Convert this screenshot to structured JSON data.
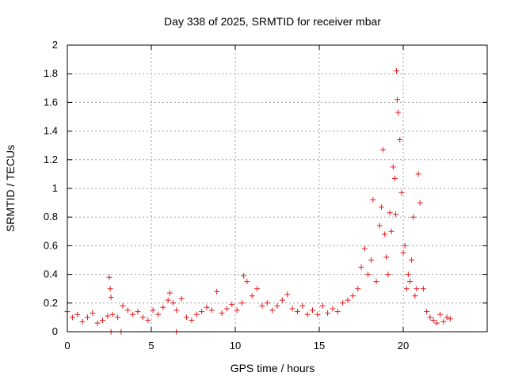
{
  "chart_data": {
    "type": "scatter",
    "title": "Day 338 of 2025, SRMTID for receiver mbar",
    "xlabel": "GPS time / hours",
    "ylabel": "SRMTID / TECUs",
    "xlim": [
      0,
      25
    ],
    "ylim": [
      0,
      2
    ],
    "grid": true,
    "xticks": [
      0,
      5,
      10,
      15,
      20
    ],
    "yticks": [
      0,
      0.2,
      0.4,
      0.6,
      0.8,
      1,
      1.2,
      1.4,
      1.6,
      1.8,
      2
    ],
    "marker": "+",
    "colors": {
      "series": "#e41a1c",
      "grid": "#a0a0a0",
      "axis": "#000000"
    },
    "series": [
      {
        "name": "SRMTID",
        "x": [
          0,
          0.3,
          0.6,
          0.9,
          1.2,
          1.5,
          1.8,
          2.1,
          2.4,
          2.5,
          2.55,
          2.6,
          2.7,
          3.0,
          3.3,
          3.6,
          3.9,
          4.2,
          4.5,
          4.8,
          5.1,
          5.4,
          5.7,
          6.0,
          6.1,
          6.3,
          6.5,
          6.8,
          7.1,
          7.4,
          7.7,
          8.0,
          8.3,
          8.6,
          8.9,
          9.2,
          9.5,
          9.8,
          10.1,
          10.4,
          10.5,
          10.7,
          11.0,
          11.3,
          11.6,
          11.9,
          12.2,
          12.5,
          12.8,
          13.1,
          13.4,
          13.7,
          14.0,
          14.3,
          14.6,
          14.9,
          15.2,
          15.5,
          15.8,
          16.1,
          16.4,
          16.7,
          17.0,
          17.3,
          17.5,
          17.7,
          17.9,
          18.1,
          18.2,
          18.4,
          18.6,
          18.7,
          18.8,
          18.9,
          19.0,
          19.1,
          19.2,
          19.3,
          19.4,
          19.5,
          19.55,
          19.6,
          19.65,
          19.7,
          19.8,
          19.9,
          20.0,
          20.1,
          20.2,
          20.3,
          20.4,
          20.5,
          20.6,
          20.7,
          20.8,
          20.9,
          21.0,
          21.2,
          21.4,
          21.6,
          21.8,
          22.0,
          22.2,
          22.4,
          22.6,
          22.8,
          2.6,
          3.2,
          6.5
        ],
        "y": [
          0.14,
          0.1,
          0.12,
          0.07,
          0.1,
          0.13,
          0.06,
          0.08,
          0.11,
          0.38,
          0.3,
          0.24,
          0.12,
          0.1,
          0.18,
          0.15,
          0.12,
          0.14,
          0.1,
          0.08,
          0.15,
          0.12,
          0.17,
          0.22,
          0.27,
          0.2,
          0.15,
          0.23,
          0.1,
          0.08,
          0.12,
          0.14,
          0.17,
          0.15,
          0.28,
          0.13,
          0.16,
          0.19,
          0.15,
          0.2,
          0.39,
          0.35,
          0.25,
          0.3,
          0.18,
          0.2,
          0.15,
          0.18,
          0.22,
          0.26,
          0.16,
          0.14,
          0.18,
          0.12,
          0.15,
          0.12,
          0.18,
          0.13,
          0.16,
          0.14,
          0.2,
          0.22,
          0.25,
          0.3,
          0.45,
          0.58,
          0.4,
          0.5,
          0.92,
          0.35,
          0.74,
          0.87,
          1.27,
          0.68,
          0.52,
          0.4,
          0.83,
          0.7,
          1.15,
          1.07,
          0.82,
          1.82,
          1.62,
          1.53,
          1.34,
          0.97,
          0.55,
          0.6,
          0.3,
          0.4,
          0.35,
          0.5,
          0.8,
          0.25,
          0.3,
          1.1,
          0.9,
          0.3,
          0.14,
          0.1,
          0.08,
          0.06,
          0.12,
          0.07,
          0.1,
          0.09,
          0,
          0,
          0
        ]
      }
    ]
  }
}
